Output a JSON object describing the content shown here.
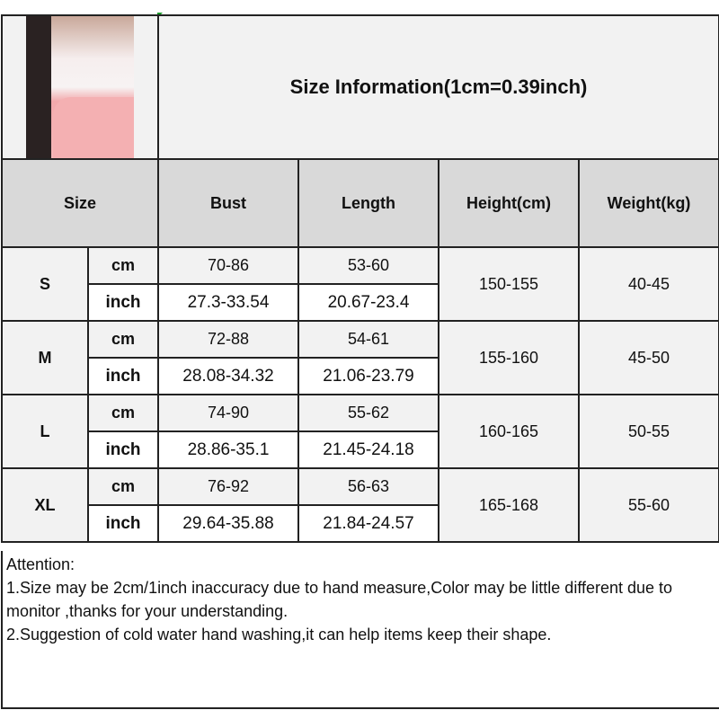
{
  "title": "Size Information(1cm=0.39inch)",
  "photo_icon": "product-photo-pink-white-sweater",
  "headers": {
    "size": "Size",
    "bust": "Bust",
    "length": "Length",
    "height": "Height(cm)",
    "weight": "Weight(kg)"
  },
  "units": {
    "cm": "cm",
    "inch": "inch"
  },
  "rows": [
    {
      "size": "S",
      "bust_cm": "70-86",
      "length_cm": "53-60",
      "bust_inch": "27.3-33.54",
      "length_inch": "20.67-23.4",
      "height": "150-155",
      "weight": "40-45"
    },
    {
      "size": "M",
      "bust_cm": "72-88",
      "length_cm": "54-61",
      "bust_inch": "28.08-34.32",
      "length_inch": "21.06-23.79",
      "height": "155-160",
      "weight": "45-50"
    },
    {
      "size": "L",
      "bust_cm": "74-90",
      "length_cm": "55-62",
      "bust_inch": "28.86-35.1",
      "length_inch": "21.45-24.18",
      "height": "160-165",
      "weight": "50-55"
    },
    {
      "size": "XL",
      "bust_cm": "76-92",
      "length_cm": "56-63",
      "bust_inch": "29.64-35.88",
      "length_inch": "21.84-24.57",
      "height": "165-168",
      "weight": "55-60"
    }
  ],
  "attention": {
    "heading": "Attention:",
    "line1": "1.Size may be 2cm/1inch inaccuracy due to hand measure,Color may be little different due to monitor ,thanks for your understanding.",
    "line2": "2.Suggestion of cold water hand washing,it can help items keep their shape."
  },
  "colors": {
    "header_bg": "#d9d9d9",
    "light_bg": "#f2f2f2",
    "border": "#222222"
  }
}
